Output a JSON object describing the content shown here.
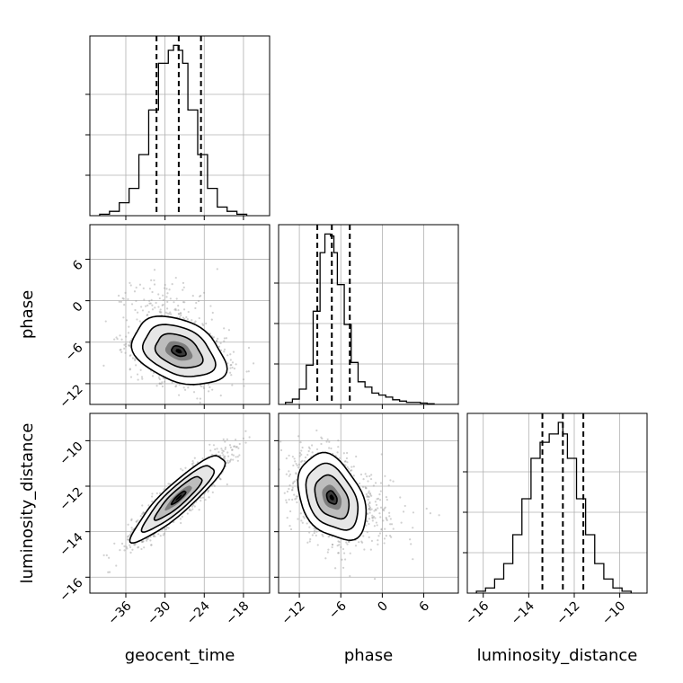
{
  "chart_data": {
    "type": "corner",
    "parameters": [
      {
        "name": "geocent_time",
        "label": "geocent_time",
        "range": [
          -41.5,
          -14
        ],
        "ticks": [
          -36,
          -30,
          -24,
          -18
        ],
        "tick_labels": [
          "−36",
          "−30",
          "−24",
          "−18"
        ],
        "quantiles": [
          -31.3,
          -27.9,
          -24.5
        ],
        "histogram": {
          "bin_edges": [
            -40,
            -38.5,
            -37,
            -35.5,
            -34,
            -32.5,
            -31,
            -29.5,
            -28.7,
            -28,
            -27.3,
            -26.5,
            -25,
            -23.5,
            -22,
            -20.5,
            -19,
            -17.5
          ],
          "counts": [
            0.2,
            0.6,
            1.8,
            3.8,
            8.5,
            14.7,
            21.2,
            23.0,
            23.7,
            23.0,
            21.2,
            14.7,
            8.5,
            3.8,
            1.2,
            0.6,
            0.2
          ]
        },
        "ylim": [
          0,
          25
        ]
      },
      {
        "name": "phase",
        "label": "phase",
        "range": [
          -15,
          11
        ],
        "ticks": [
          -12,
          -6,
          0,
          6
        ],
        "tick_labels": [
          "−12",
          "−6",
          "0",
          "6"
        ],
        "quantiles": [
          -9.4,
          -7.3,
          -4.7
        ],
        "histogram": {
          "bin_edges": [
            -14,
            -13,
            -12,
            -11,
            -10,
            -9,
            -8.3,
            -7.5,
            -7,
            -6.5,
            -5.5,
            -4.5,
            -3.5,
            -2.5,
            -1.5,
            -0.5,
            0.5,
            1.5,
            2.5,
            3.5,
            4.5,
            5.5,
            6.5,
            7.5
          ],
          "counts": [
            0.3,
            0.8,
            2.3,
            5.9,
            14.0,
            22.8,
            25.6,
            25.3,
            22.8,
            18.0,
            12.0,
            6.3,
            3.4,
            2.6,
            1.7,
            1.4,
            1.1,
            0.7,
            0.5,
            0.3,
            0.3,
            0.2,
            0.1
          ]
        },
        "ylim": [
          0,
          27
        ]
      },
      {
        "name": "luminosity_distance",
        "label": "luminosity_distance",
        "range": [
          -16.7,
          -8.8
        ],
        "ticks": [
          -16,
          -14,
          -12,
          -10
        ],
        "tick_labels": [
          "−16",
          "−14",
          "−12",
          "−10"
        ],
        "quantiles": [
          -13.4,
          -12.5,
          -11.6
        ],
        "histogram": {
          "bin_edges": [
            -16.3,
            -15.9,
            -15.5,
            -15.1,
            -14.7,
            -14.3,
            -13.9,
            -13.5,
            -13.1,
            -12.7,
            -12.5,
            -12.3,
            -11.9,
            -11.5,
            -11.1,
            -10.7,
            -10.3,
            -9.9,
            -9.5
          ],
          "counts": [
            0.3,
            0.8,
            2.2,
            4.6,
            9.1,
            14.7,
            21.0,
            23.5,
            24.8,
            26.6,
            24.8,
            21.0,
            14.7,
            9.1,
            4.6,
            2.2,
            0.8,
            0.3
          ]
        },
        "ylim": [
          0,
          28
        ]
      }
    ],
    "correlations": {
      "geocent_time__phase": -0.35,
      "geocent_time__luminosity_distance": 0.9,
      "phase__luminosity_distance": -0.35
    },
    "grid": true,
    "colors": {
      "histogram": "#000000",
      "quantile_line": "#000000",
      "contour": "#000000",
      "scatter": "#9a9a9a",
      "grid": "#b0b0b0"
    }
  }
}
